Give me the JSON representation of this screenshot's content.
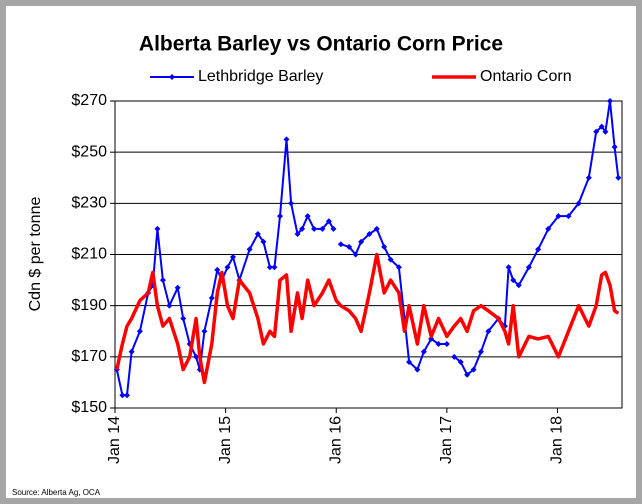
{
  "chart_data": {
    "type": "line",
    "title": "Alberta Barley vs Ontario Corn Price",
    "y_label": "Cdn $ per tonne",
    "source": "Source:  Alberta Ag, OCA",
    "x": [
      0.2,
      0.8,
      1.3,
      1.8,
      2.7,
      3.6,
      4.1,
      4.6,
      5.2,
      5.9,
      6.8,
      7.4,
      8.1,
      8.8,
      9.2,
      9.7,
      10.5,
      11.1,
      11.6,
      12.2,
      12.8,
      13.5,
      14.6,
      15.5,
      16.1,
      16.8,
      17.3,
      17.9,
      18.6,
      19.1,
      19.8,
      20.3,
      20.9,
      21.6,
      22.5,
      23.2,
      23.7,
      24.0,
      24.5,
      25.4,
      26.1,
      26.7,
      27.6,
      28.4,
      29.2,
      29.9,
      30.8,
      31.4,
      31.9,
      32.8,
      33.5,
      34.3,
      35.1,
      36.0,
      36.4,
      36.8,
      37.5,
      38.2,
      38.9,
      39.7,
      40.5,
      41.6,
      42.3,
      42.7,
      43.2,
      43.8,
      44.9,
      45.9,
      47.0,
      48.1,
      49.2,
      50.3,
      51.4,
      52.2,
      52.8,
      53.2,
      53.7,
      54.2,
      54.6
    ],
    "xlim": [
      0,
      55
    ],
    "xticks": [
      {
        "value": 0,
        "label": "Jan 14"
      },
      {
        "value": 12,
        "label": "Jan 15"
      },
      {
        "value": 24,
        "label": "Jan 16"
      },
      {
        "value": 36,
        "label": "Jan 17"
      },
      {
        "value": 48,
        "label": "Jan 18"
      }
    ],
    "ylim": [
      150,
      270
    ],
    "yticks": [
      {
        "value": 150,
        "label": "$150"
      },
      {
        "value": 170,
        "label": "$170"
      },
      {
        "value": 190,
        "label": "$190"
      },
      {
        "value": 210,
        "label": "$210"
      },
      {
        "value": 230,
        "label": "$230"
      },
      {
        "value": 250,
        "label": "$250"
      },
      {
        "value": 270,
        "label": "$270"
      }
    ],
    "grid": true,
    "legend": "top",
    "series": [
      {
        "name": "Lethbridge Barley",
        "color": "#0000ff",
        "marker": "diamond",
        "values": [
          165,
          155,
          155,
          172,
          180,
          195,
          198,
          220,
          200,
          190,
          197,
          185,
          175,
          170,
          165,
          180,
          193,
          204,
          200,
          205,
          209,
          200,
          212,
          218,
          215,
          205,
          205,
          225,
          255,
          230,
          218,
          220,
          225,
          220,
          220,
          223,
          220,
          null,
          214,
          213,
          210,
          215,
          218,
          220,
          213,
          208,
          205,
          185,
          168,
          165,
          172,
          177,
          175,
          175,
          null,
          170,
          168,
          163,
          165,
          172,
          180,
          185,
          182,
          205,
          200,
          198,
          205,
          212,
          220,
          225,
          225,
          230,
          240,
          258,
          260,
          258,
          270,
          252,
          240
        ]
      },
      {
        "name": "Ontario Corn",
        "color": "#ff0000",
        "values": [
          165,
          175,
          182,
          185,
          192,
          195,
          203,
          190,
          182,
          185,
          175,
          165,
          170,
          185,
          170,
          160,
          175,
          195,
          203,
          190,
          185,
          200,
          195,
          185,
          175,
          180,
          178,
          200,
          202,
          180,
          195,
          185,
          200,
          190,
          195,
          200,
          195,
          192,
          190,
          188,
          185,
          180,
          195,
          210,
          195,
          200,
          195,
          180,
          190,
          175,
          190,
          178,
          185,
          178,
          180,
          182,
          185,
          180,
          188,
          190,
          188,
          185,
          180,
          175,
          190,
          170,
          178,
          177,
          178,
          170,
          180,
          190,
          182,
          190,
          202,
          203,
          198,
          188,
          187
        ]
      }
    ]
  }
}
